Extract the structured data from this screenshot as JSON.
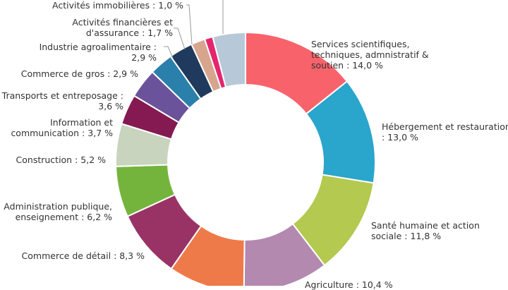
{
  "chart_data": {
    "type": "donut",
    "slices": [
      {
        "id": "services",
        "lines": [
          "Services scientifiques,",
          "techniques, admnistratif &",
          "soutien : 14,0 %"
        ],
        "value": 14.0,
        "color": "#f8636b"
      },
      {
        "id": "hebergement",
        "lines": [
          "Hébergement et restauration",
          ": 13,0 %"
        ],
        "value": 13.0,
        "color": "#2aa5cb"
      },
      {
        "id": "sante",
        "lines": [
          "Santé humaine et action",
          "sociale : 11,8 %"
        ],
        "value": 11.8,
        "color": "#b3c94f"
      },
      {
        "id": "agriculture",
        "lines": [
          "Agriculture : 10,4 %"
        ],
        "value": 10.4,
        "color": "#b389b0"
      },
      {
        "id": "industrie",
        "lines": [],
        "value": 9.3,
        "color": "#ef7a49"
      },
      {
        "id": "commerce-detail",
        "lines": [
          "Commerce de détail : 8,3 %"
        ],
        "value": 8.3,
        "color": "#9a3365"
      },
      {
        "id": "administration",
        "lines": [
          "Administration publique,",
          "enseignement : 6,2 %"
        ],
        "value": 6.2,
        "color": "#74b43c"
      },
      {
        "id": "construction",
        "lines": [
          "Construction : 5,2 %"
        ],
        "value": 5.2,
        "color": "#c9d4bf"
      },
      {
        "id": "information",
        "lines": [
          "Information et",
          "communication : 3,7 %"
        ],
        "value": 3.7,
        "color": "#841a51"
      },
      {
        "id": "transports",
        "lines": [
          "Transports et entreposage :",
          "3,6 %"
        ],
        "value": 3.6,
        "color": "#6b539b"
      },
      {
        "id": "commerce-gros",
        "lines": [
          "Commerce de gros : 2,9 %"
        ],
        "value": 2.9,
        "color": "#2b7fab"
      },
      {
        "id": "agroalimentaire",
        "lines": [
          "Industrie agroalimentaire :",
          "2,9 %"
        ],
        "value": 2.9,
        "color": "#1f3a5c"
      },
      {
        "id": "financieres",
        "lines": [
          "Activités financières et",
          "d'assurance : 1,7 %"
        ],
        "value": 1.7,
        "color": "#d7a58d"
      },
      {
        "id": "immobilieres",
        "lines": [
          "Activités immobilières : 1,0 %"
        ],
        "value": 1.0,
        "color": "#e4266f"
      },
      {
        "id": "autres",
        "lines": [],
        "value": 4.0,
        "color": "#b7c9d8"
      }
    ]
  }
}
